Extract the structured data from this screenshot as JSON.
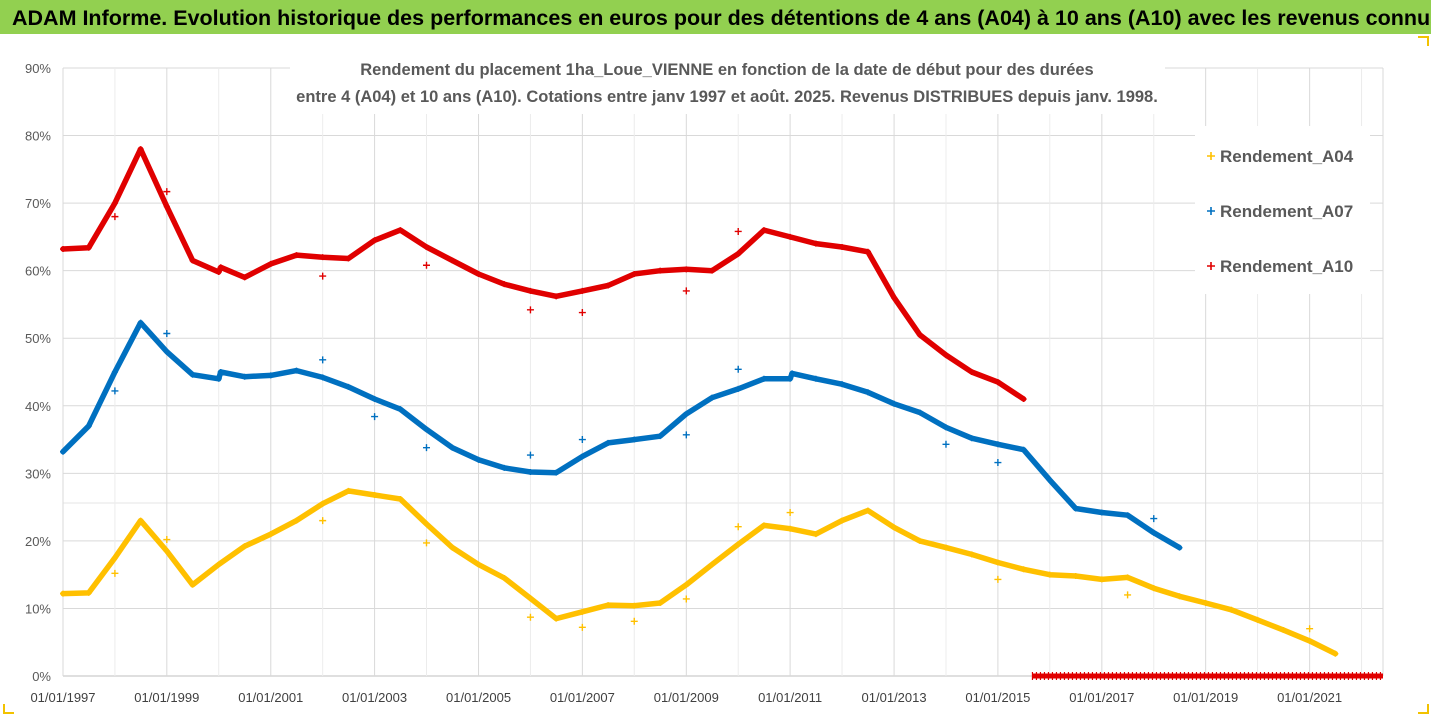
{
  "banner": {
    "text": "ADAM Informe. Evolution historique des performances en euros pour des détentions de 4 ans (A04) à 10 ans (A10) avec les revenus connus distribués"
  },
  "colors": {
    "banner_bg": "#92d050",
    "A04": "#ffc000",
    "A07": "#0070c0",
    "A10": "#e00000",
    "grid": "#d9d9d9"
  },
  "chart_data": {
    "type": "scatter",
    "title_lines": [
      "Rendement du placement 1ha_Loue_VIENNE en fonction de la date de début pour des durées",
      "entre 4 (A04) et 10 ans (A10). Cotations entre janv 1997 et août. 2025. Revenus DISTRIBUES depuis janv. 1998."
    ],
    "xlabel": "",
    "ylabel": "",
    "x_range": [
      "1997-01-01",
      "2022-06-01"
    ],
    "y_range": [
      0,
      90
    ],
    "y_unit": "%",
    "y_ticks": [
      "0%",
      "10%",
      "20%",
      "30%",
      "40%",
      "50%",
      "60%",
      "70%",
      "80%",
      "90%"
    ],
    "x_ticks": [
      "01/01/1997",
      "01/01/1999",
      "01/01/2001",
      "01/01/2003",
      "01/01/2005",
      "01/01/2007",
      "01/01/2009",
      "01/01/2011",
      "01/01/2013",
      "01/01/2015",
      "01/01/2017",
      "01/01/2019",
      "01/01/2021"
    ],
    "grid": true,
    "legend_position": "right",
    "series": [
      {
        "name": "Rendement_A04",
        "color": "#ffc000",
        "points": [
          [
            "1997-01-01",
            12.2
          ],
          [
            "1997-07-01",
            12.3
          ],
          [
            "1998-01-01",
            17.5
          ],
          [
            "1998-07-01",
            23.0
          ],
          [
            "1999-01-01",
            18.5
          ],
          [
            "1999-07-01",
            13.5
          ],
          [
            "2000-01-01",
            16.5
          ],
          [
            "2000-07-01",
            19.2
          ],
          [
            "2001-01-01",
            21.0
          ],
          [
            "2001-07-01",
            23.0
          ],
          [
            "2002-01-01",
            25.5
          ],
          [
            "2002-07-01",
            27.4
          ],
          [
            "2003-01-01",
            26.8
          ],
          [
            "2003-07-01",
            26.2
          ],
          [
            "2004-01-01",
            22.5
          ],
          [
            "2004-07-01",
            19.0
          ],
          [
            "2005-01-01",
            16.5
          ],
          [
            "2005-07-01",
            14.5
          ],
          [
            "2006-01-01",
            11.5
          ],
          [
            "2006-07-01",
            8.5
          ],
          [
            "2007-01-01",
            9.5
          ],
          [
            "2007-07-01",
            10.5
          ],
          [
            "2008-01-01",
            10.4
          ],
          [
            "2008-07-01",
            10.8
          ],
          [
            "2009-01-01",
            13.5
          ],
          [
            "2009-07-01",
            16.5
          ],
          [
            "2010-01-01",
            19.5
          ],
          [
            "2010-07-01",
            22.3
          ],
          [
            "2011-01-01",
            21.8
          ],
          [
            "2011-07-01",
            21.0
          ],
          [
            "2012-01-01",
            23.0
          ],
          [
            "2012-07-01",
            24.5
          ],
          [
            "2013-01-01",
            22.0
          ],
          [
            "2013-07-01",
            20.0
          ],
          [
            "2014-01-01",
            19.0
          ],
          [
            "2014-07-01",
            18.0
          ],
          [
            "2015-01-01",
            16.8
          ],
          [
            "2015-07-01",
            15.8
          ],
          [
            "2016-01-01",
            15.0
          ],
          [
            "2016-07-01",
            14.8
          ],
          [
            "2017-01-01",
            14.3
          ],
          [
            "2017-07-01",
            14.6
          ],
          [
            "2018-01-01",
            13.0
          ],
          [
            "2018-07-01",
            11.8
          ],
          [
            "2019-01-01",
            10.8
          ],
          [
            "2019-07-01",
            9.8
          ],
          [
            "2020-01-01",
            8.3
          ],
          [
            "2020-07-01",
            6.8
          ],
          [
            "2021-01-01",
            5.2
          ],
          [
            "2021-07-01",
            3.3
          ]
        ],
        "outliers": [
          [
            "1998-01-01",
            15.2
          ],
          [
            "1999-01-01",
            20.2
          ],
          [
            "2002-01-01",
            23.0
          ],
          [
            "2004-01-01",
            19.7
          ],
          [
            "2006-01-01",
            8.7
          ],
          [
            "2007-01-01",
            7.2
          ],
          [
            "2008-01-01",
            8.1
          ],
          [
            "2009-01-01",
            11.4
          ],
          [
            "2010-01-01",
            22.1
          ],
          [
            "2011-01-01",
            24.2
          ],
          [
            "2015-01-01",
            14.3
          ],
          [
            "2017-07-01",
            12.0
          ],
          [
            "2021-01-01",
            7.0
          ]
        ]
      },
      {
        "name": "Rendement_A07",
        "color": "#0070c0",
        "points": [
          [
            "1997-01-01",
            33.2
          ],
          [
            "1997-07-01",
            37.0
          ],
          [
            "1998-01-01",
            45.0
          ],
          [
            "1998-07-01",
            52.3
          ],
          [
            "1999-01-01",
            48.0
          ],
          [
            "1999-07-01",
            44.6
          ],
          [
            "2000-01-01",
            44.0
          ],
          [
            "2000-01-15",
            45.0
          ],
          [
            "2000-07-01",
            44.3
          ],
          [
            "2001-01-01",
            44.5
          ],
          [
            "2001-07-01",
            45.2
          ],
          [
            "2002-01-01",
            44.2
          ],
          [
            "2002-07-01",
            42.8
          ],
          [
            "2003-01-01",
            41.0
          ],
          [
            "2003-07-01",
            39.5
          ],
          [
            "2004-01-01",
            36.5
          ],
          [
            "2004-07-01",
            33.8
          ],
          [
            "2005-01-01",
            32.0
          ],
          [
            "2005-07-01",
            30.8
          ],
          [
            "2006-01-01",
            30.2
          ],
          [
            "2006-07-01",
            30.1
          ],
          [
            "2007-01-01",
            32.5
          ],
          [
            "2007-07-01",
            34.5
          ],
          [
            "2008-01-01",
            35.0
          ],
          [
            "2008-07-01",
            35.5
          ],
          [
            "2009-01-01",
            38.8
          ],
          [
            "2009-07-01",
            41.2
          ],
          [
            "2010-01-01",
            42.5
          ],
          [
            "2010-07-01",
            44.0
          ],
          [
            "2011-01-01",
            44.0
          ],
          [
            "2011-01-15",
            44.8
          ],
          [
            "2011-07-01",
            44.0
          ],
          [
            "2012-01-01",
            43.2
          ],
          [
            "2012-07-01",
            42.0
          ],
          [
            "2013-01-01",
            40.3
          ],
          [
            "2013-07-01",
            39.0
          ],
          [
            "2014-01-01",
            36.8
          ],
          [
            "2014-07-01",
            35.2
          ],
          [
            "2015-01-01",
            34.3
          ],
          [
            "2015-07-01",
            33.5
          ],
          [
            "2016-01-01",
            29.0
          ],
          [
            "2016-07-01",
            24.8
          ],
          [
            "2017-01-01",
            24.2
          ],
          [
            "2017-07-01",
            23.8
          ],
          [
            "2018-01-01",
            21.2
          ],
          [
            "2018-07-01",
            19.0
          ]
        ],
        "outliers": [
          [
            "1998-01-01",
            42.2
          ],
          [
            "1999-01-01",
            50.7
          ],
          [
            "2002-01-01",
            46.8
          ],
          [
            "2003-01-01",
            38.4
          ],
          [
            "2004-01-01",
            33.8
          ],
          [
            "2006-01-01",
            32.7
          ],
          [
            "2007-01-01",
            35.0
          ],
          [
            "2009-01-01",
            35.7
          ],
          [
            "2010-01-01",
            45.4
          ],
          [
            "2014-01-01",
            34.3
          ],
          [
            "2015-01-01",
            31.6
          ],
          [
            "2018-01-01",
            23.3
          ]
        ]
      },
      {
        "name": "Rendement_A10",
        "color": "#e00000",
        "points": [
          [
            "1997-01-01",
            63.2
          ],
          [
            "1997-07-01",
            63.4
          ],
          [
            "1998-01-01",
            70.0
          ],
          [
            "1998-07-01",
            78.0
          ],
          [
            "1999-01-01",
            69.5
          ],
          [
            "1999-07-01",
            61.5
          ],
          [
            "2000-01-01",
            59.8
          ],
          [
            "2000-01-15",
            60.5
          ],
          [
            "2000-07-01",
            59.0
          ],
          [
            "2001-01-01",
            61.0
          ],
          [
            "2001-07-01",
            62.3
          ],
          [
            "2002-01-01",
            62.0
          ],
          [
            "2002-07-01",
            61.8
          ],
          [
            "2003-01-01",
            64.5
          ],
          [
            "2003-07-01",
            66.0
          ],
          [
            "2004-01-01",
            63.5
          ],
          [
            "2004-07-01",
            61.5
          ],
          [
            "2005-01-01",
            59.5
          ],
          [
            "2005-07-01",
            58.0
          ],
          [
            "2006-01-01",
            57.0
          ],
          [
            "2006-07-01",
            56.2
          ],
          [
            "2007-01-01",
            57.0
          ],
          [
            "2007-07-01",
            57.8
          ],
          [
            "2008-01-01",
            59.5
          ],
          [
            "2008-07-01",
            60.0
          ],
          [
            "2009-01-01",
            60.2
          ],
          [
            "2009-07-01",
            60.0
          ],
          [
            "2010-01-01",
            62.5
          ],
          [
            "2010-07-01",
            66.0
          ],
          [
            "2011-01-01",
            65.0
          ],
          [
            "2011-07-01",
            64.0
          ],
          [
            "2012-01-01",
            63.5
          ],
          [
            "2012-07-01",
            62.8
          ],
          [
            "2013-01-01",
            56.0
          ],
          [
            "2013-07-01",
            50.5
          ],
          [
            "2014-01-01",
            47.5
          ],
          [
            "2014-07-01",
            45.0
          ],
          [
            "2015-01-01",
            43.5
          ],
          [
            "2015-07-01",
            41.0
          ]
        ],
        "outliers": [
          [
            "1998-01-01",
            68.0
          ],
          [
            "1999-01-01",
            71.7
          ],
          [
            "2002-01-01",
            59.2
          ],
          [
            "2004-01-01",
            60.8
          ],
          [
            "2006-01-01",
            54.2
          ],
          [
            "2007-01-01",
            53.8
          ],
          [
            "2009-01-01",
            57.0
          ],
          [
            "2010-01-01",
            65.8
          ]
        ],
        "zero_segment": [
          [
            "2015-09-01",
            0
          ],
          [
            "2022-06-01",
            0
          ]
        ]
      }
    ]
  }
}
